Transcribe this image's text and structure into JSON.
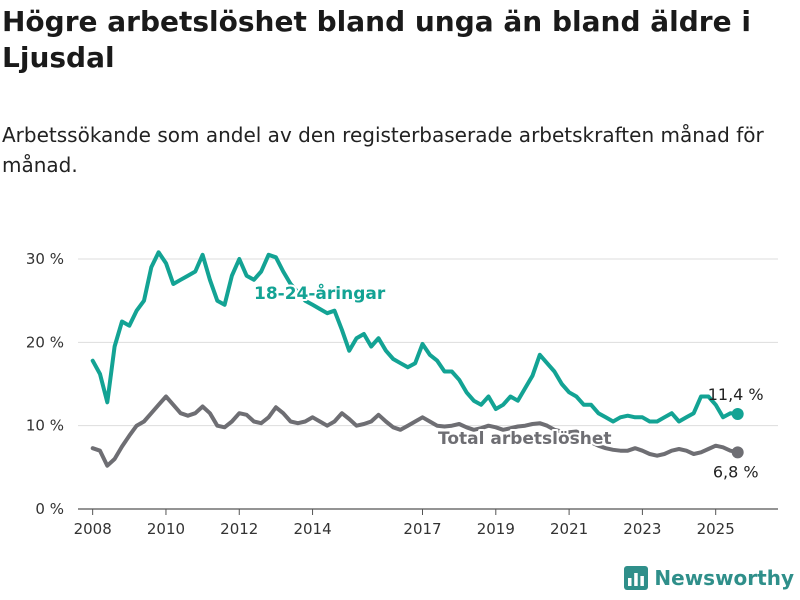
{
  "header": {
    "title": "Högre arbetslöshet bland unga än bland äldre i Ljusdal",
    "subtitle": "Arbetssökande som andel av den registerbaserade arbetskraften månad för månad."
  },
  "brand": {
    "name": "Newsworthy",
    "icon": "bar-chart-logo-icon"
  },
  "colors": {
    "youth": "#13a394",
    "total": "#6e6e73",
    "grid": "#dddddd",
    "axis": "#555555"
  },
  "chart_data": {
    "type": "line",
    "title": "Högre arbetslöshet bland unga än bland äldre i Ljusdal",
    "subtitle": "Arbetssökande som andel av den registerbaserade arbetskraften månad för månad.",
    "xlabel": "",
    "ylabel": "",
    "xlim": [
      2007.6,
      2026.7
    ],
    "ylim": [
      0,
      30
    ],
    "grid": true,
    "yticks": [
      {
        "value": 0,
        "label": "0 %"
      },
      {
        "value": 10,
        "label": "10 %"
      },
      {
        "value": 20,
        "label": "20 %"
      },
      {
        "value": 30,
        "label": "30 %"
      }
    ],
    "xticks": [
      {
        "value": 2008,
        "label": "2008"
      },
      {
        "value": 2010,
        "label": "2010"
      },
      {
        "value": 2012,
        "label": "2012"
      },
      {
        "value": 2014,
        "label": "2014"
      },
      {
        "value": 2017,
        "label": "2017"
      },
      {
        "value": 2019,
        "label": "2019"
      },
      {
        "value": 2021,
        "label": "2021"
      },
      {
        "value": 2023,
        "label": "2023"
      },
      {
        "value": 2025,
        "label": "2025"
      }
    ],
    "series": [
      {
        "name": "18-24-åringar",
        "color": "#13a394",
        "end_label": "11,4 %",
        "points": [
          [
            2008.0,
            17.8
          ],
          [
            2008.2,
            16.2
          ],
          [
            2008.4,
            12.8
          ],
          [
            2008.6,
            19.5
          ],
          [
            2008.8,
            22.5
          ],
          [
            2009.0,
            22.0
          ],
          [
            2009.2,
            23.8
          ],
          [
            2009.4,
            25.0
          ],
          [
            2009.6,
            29.0
          ],
          [
            2009.8,
            30.8
          ],
          [
            2010.0,
            29.5
          ],
          [
            2010.2,
            27.0
          ],
          [
            2010.4,
            27.5
          ],
          [
            2010.6,
            28.0
          ],
          [
            2010.8,
            28.5
          ],
          [
            2011.0,
            30.5
          ],
          [
            2011.2,
            27.5
          ],
          [
            2011.4,
            25.0
          ],
          [
            2011.6,
            24.5
          ],
          [
            2011.8,
            28.0
          ],
          [
            2012.0,
            30.0
          ],
          [
            2012.2,
            28.0
          ],
          [
            2012.4,
            27.5
          ],
          [
            2012.6,
            28.5
          ],
          [
            2012.8,
            30.5
          ],
          [
            2013.0,
            30.2
          ],
          [
            2013.2,
            28.5
          ],
          [
            2013.4,
            27.0
          ],
          [
            2013.6,
            26.0
          ],
          [
            2013.8,
            25.0
          ],
          [
            2014.0,
            24.5
          ],
          [
            2014.2,
            24.0
          ],
          [
            2014.4,
            23.5
          ],
          [
            2014.6,
            23.8
          ],
          [
            2014.8,
            21.5
          ],
          [
            2015.0,
            19.0
          ],
          [
            2015.2,
            20.5
          ],
          [
            2015.4,
            21.0
          ],
          [
            2015.6,
            19.5
          ],
          [
            2015.8,
            20.5
          ],
          [
            2016.0,
            19.0
          ],
          [
            2016.2,
            18.0
          ],
          [
            2016.4,
            17.5
          ],
          [
            2016.6,
            17.0
          ],
          [
            2016.8,
            17.5
          ],
          [
            2017.0,
            19.8
          ],
          [
            2017.2,
            18.5
          ],
          [
            2017.4,
            17.8
          ],
          [
            2017.6,
            16.5
          ],
          [
            2017.8,
            16.5
          ],
          [
            2018.0,
            15.5
          ],
          [
            2018.2,
            14.0
          ],
          [
            2018.4,
            13.0
          ],
          [
            2018.6,
            12.5
          ],
          [
            2018.8,
            13.5
          ],
          [
            2019.0,
            12.0
          ],
          [
            2019.2,
            12.5
          ],
          [
            2019.4,
            13.5
          ],
          [
            2019.6,
            13.0
          ],
          [
            2019.8,
            14.5
          ],
          [
            2020.0,
            16.0
          ],
          [
            2020.2,
            18.5
          ],
          [
            2020.4,
            17.5
          ],
          [
            2020.6,
            16.5
          ],
          [
            2020.8,
            15.0
          ],
          [
            2021.0,
            14.0
          ],
          [
            2021.2,
            13.5
          ],
          [
            2021.4,
            12.5
          ],
          [
            2021.6,
            12.5
          ],
          [
            2021.8,
            11.5
          ],
          [
            2022.0,
            11.0
          ],
          [
            2022.2,
            10.5
          ],
          [
            2022.4,
            11.0
          ],
          [
            2022.6,
            11.2
          ],
          [
            2022.8,
            11.0
          ],
          [
            2023.0,
            11.0
          ],
          [
            2023.2,
            10.5
          ],
          [
            2023.4,
            10.5
          ],
          [
            2023.6,
            11.0
          ],
          [
            2023.8,
            11.5
          ],
          [
            2024.0,
            10.5
          ],
          [
            2024.2,
            11.0
          ],
          [
            2024.4,
            11.5
          ],
          [
            2024.6,
            13.5
          ],
          [
            2024.8,
            13.5
          ],
          [
            2025.0,
            12.5
          ],
          [
            2025.2,
            11.0
          ],
          [
            2025.4,
            11.5
          ],
          [
            2025.6,
            11.4
          ]
        ]
      },
      {
        "name": "Total arbetslöshet",
        "color": "#6e6e73",
        "end_label": "6,8 %",
        "points": [
          [
            2008.0,
            7.3
          ],
          [
            2008.2,
            7.0
          ],
          [
            2008.4,
            5.2
          ],
          [
            2008.6,
            6.0
          ],
          [
            2008.8,
            7.5
          ],
          [
            2009.0,
            8.8
          ],
          [
            2009.2,
            10.0
          ],
          [
            2009.4,
            10.5
          ],
          [
            2009.6,
            11.5
          ],
          [
            2009.8,
            12.5
          ],
          [
            2010.0,
            13.5
          ],
          [
            2010.2,
            12.5
          ],
          [
            2010.4,
            11.5
          ],
          [
            2010.6,
            11.2
          ],
          [
            2010.8,
            11.5
          ],
          [
            2011.0,
            12.3
          ],
          [
            2011.2,
            11.5
          ],
          [
            2011.4,
            10.0
          ],
          [
            2011.6,
            9.8
          ],
          [
            2011.8,
            10.5
          ],
          [
            2012.0,
            11.5
          ],
          [
            2012.2,
            11.3
          ],
          [
            2012.4,
            10.5
          ],
          [
            2012.6,
            10.3
          ],
          [
            2012.8,
            11.0
          ],
          [
            2013.0,
            12.2
          ],
          [
            2013.2,
            11.5
          ],
          [
            2013.4,
            10.5
          ],
          [
            2013.6,
            10.3
          ],
          [
            2013.8,
            10.5
          ],
          [
            2014.0,
            11.0
          ],
          [
            2014.2,
            10.5
          ],
          [
            2014.4,
            10.0
          ],
          [
            2014.6,
            10.5
          ],
          [
            2014.8,
            11.5
          ],
          [
            2015.0,
            10.8
          ],
          [
            2015.2,
            10.0
          ],
          [
            2015.4,
            10.2
          ],
          [
            2015.6,
            10.5
          ],
          [
            2015.8,
            11.3
          ],
          [
            2016.0,
            10.5
          ],
          [
            2016.2,
            9.8
          ],
          [
            2016.4,
            9.5
          ],
          [
            2016.6,
            10.0
          ],
          [
            2016.8,
            10.5
          ],
          [
            2017.0,
            11.0
          ],
          [
            2017.2,
            10.5
          ],
          [
            2017.4,
            10.0
          ],
          [
            2017.6,
            9.9
          ],
          [
            2017.8,
            10.0
          ],
          [
            2018.0,
            10.2
          ],
          [
            2018.2,
            9.8
          ],
          [
            2018.4,
            9.5
          ],
          [
            2018.6,
            9.7
          ],
          [
            2018.8,
            10.0
          ],
          [
            2019.0,
            9.8
          ],
          [
            2019.2,
            9.5
          ],
          [
            2019.4,
            9.7
          ],
          [
            2019.6,
            9.9
          ],
          [
            2019.8,
            10.0
          ],
          [
            2020.0,
            10.2
          ],
          [
            2020.2,
            10.3
          ],
          [
            2020.4,
            10.0
          ],
          [
            2020.6,
            9.5
          ],
          [
            2020.8,
            9.3
          ],
          [
            2021.0,
            9.2
          ],
          [
            2021.2,
            9.3
          ],
          [
            2021.4,
            8.8
          ],
          [
            2021.6,
            8.0
          ],
          [
            2021.8,
            7.6
          ],
          [
            2022.0,
            7.3
          ],
          [
            2022.2,
            7.1
          ],
          [
            2022.4,
            7.0
          ],
          [
            2022.6,
            7.0
          ],
          [
            2022.8,
            7.3
          ],
          [
            2023.0,
            7.0
          ],
          [
            2023.2,
            6.6
          ],
          [
            2023.4,
            6.4
          ],
          [
            2023.6,
            6.6
          ],
          [
            2023.8,
            7.0
          ],
          [
            2024.0,
            7.2
          ],
          [
            2024.2,
            7.0
          ],
          [
            2024.4,
            6.6
          ],
          [
            2024.6,
            6.8
          ],
          [
            2024.8,
            7.2
          ],
          [
            2025.0,
            7.6
          ],
          [
            2025.2,
            7.4
          ],
          [
            2025.4,
            7.0
          ],
          [
            2025.6,
            6.8
          ]
        ]
      }
    ]
  }
}
